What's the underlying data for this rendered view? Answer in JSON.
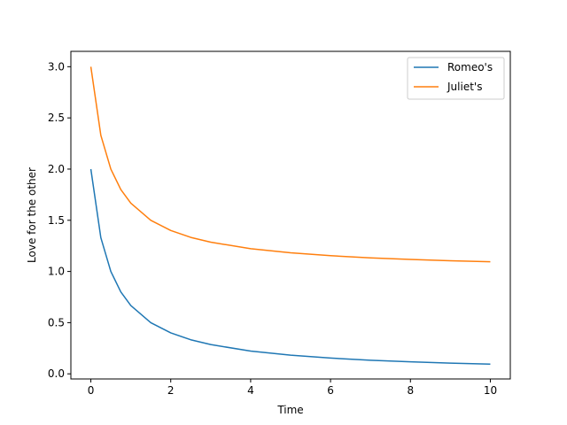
{
  "chart_data": {
    "type": "line",
    "title": "",
    "xlabel": "Time",
    "ylabel": "Love for the other",
    "xlim": [
      -0.5,
      10.5
    ],
    "ylim": [
      -0.05,
      3.15
    ],
    "xticks": [
      0,
      2,
      4,
      6,
      8,
      10
    ],
    "yticks": [
      0.0,
      0.5,
      1.0,
      1.5,
      2.0,
      2.5,
      3.0
    ],
    "xtick_labels": [
      "0",
      "2",
      "4",
      "6",
      "8",
      "10"
    ],
    "ytick_labels": [
      "0.0",
      "0.5",
      "1.0",
      "1.5",
      "2.0",
      "2.5",
      "3.0"
    ],
    "grid": false,
    "legend_position": "top-right",
    "series": [
      {
        "name": "Romeo's",
        "color": "#1f77b4",
        "x": [
          0,
          0.25,
          0.5,
          0.75,
          1,
          1.5,
          2,
          2.5,
          3,
          4,
          5,
          6,
          7,
          8,
          9,
          10
        ],
        "y": [
          2.0,
          1.33,
          1.0,
          0.8,
          0.667,
          0.5,
          0.4,
          0.333,
          0.286,
          0.222,
          0.182,
          0.154,
          0.133,
          0.118,
          0.105,
          0.095
        ]
      },
      {
        "name": "Juliet's",
        "color": "#ff7f0e",
        "x": [
          0,
          0.25,
          0.5,
          0.75,
          1,
          1.5,
          2,
          2.5,
          3,
          4,
          5,
          6,
          7,
          8,
          9,
          10
        ],
        "y": [
          3.0,
          2.33,
          2.0,
          1.8,
          1.667,
          1.5,
          1.4,
          1.333,
          1.286,
          1.222,
          1.182,
          1.154,
          1.133,
          1.118,
          1.105,
          1.095
        ]
      }
    ]
  }
}
